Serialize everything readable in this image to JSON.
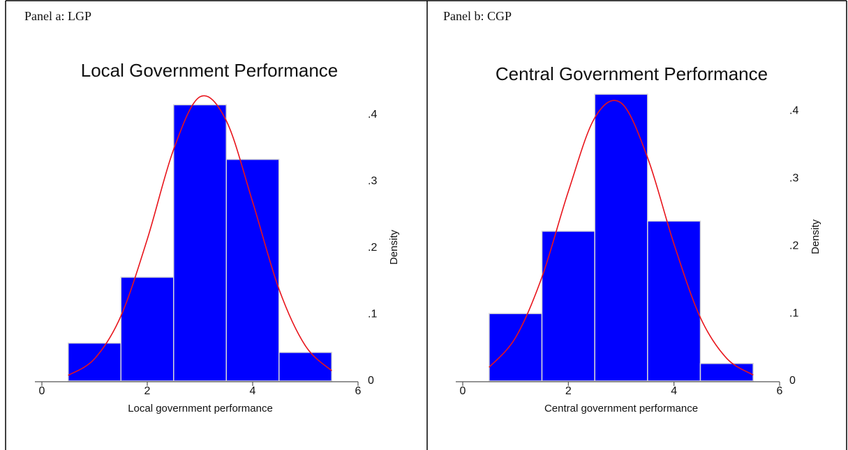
{
  "chart_data": [
    {
      "type": "histogram",
      "panel_label": "Panel  a:  LGP",
      "title": "Local Government Performance",
      "x_label": "Local government performance",
      "y_label": "Density",
      "bins": [
        0.5,
        1.5,
        2.5,
        3.5,
        4.5,
        5.5
      ],
      "values": [
        0.057,
        0.156,
        0.415,
        0.333,
        0.043
      ],
      "color": "#0000ff",
      "curve": {
        "color": "#e8141b",
        "x": [
          0.5,
          1,
          1.5,
          2,
          2.5,
          3,
          3.5,
          4,
          4.5,
          5,
          5.5
        ],
        "y": [
          0.0086,
          0.0335,
          0.0977,
          0.213,
          0.348,
          0.427,
          0.391,
          0.269,
          0.138,
          0.053,
          0.0154
        ]
      },
      "xlim": [
        0,
        6
      ],
      "xticks": [
        0,
        2,
        4,
        6
      ],
      "ylim": [
        0,
        0.45
      ],
      "yticks": [
        0,
        {
          "value": 0.1,
          "label": ".1"
        },
        {
          "value": 0.2,
          "label": ".2"
        },
        {
          "value": 0.3,
          "label": ".3"
        },
        {
          "value": 0.4,
          "label": ".4"
        }
      ]
    },
    {
      "type": "histogram",
      "panel_label": "Panel  b:  CGP",
      "title": "Central Government Performance",
      "x_label": "Central government performance",
      "y_label": "Density",
      "bins": [
        0.5,
        1.5,
        2.5,
        3.5,
        4.5,
        5.5
      ],
      "values": [
        0.1,
        0.222,
        0.425,
        0.237,
        0.026
      ],
      "color": "#0000ff",
      "curve": {
        "color": "#e8141b",
        "x": [
          0.5,
          1,
          1.5,
          2,
          2.5,
          3,
          3.5,
          4,
          4.5,
          5,
          5.5
        ],
        "y": [
          0.0204,
          0.0644,
          0.154,
          0.281,
          0.39,
          0.412,
          0.331,
          0.203,
          0.094,
          0.0335,
          0.009
        ]
      },
      "xlim": [
        0,
        6
      ],
      "xticks": [
        0,
        2,
        4,
        6
      ],
      "ylim": [
        0,
        0.45
      ],
      "yticks": [
        0,
        {
          "value": 0.1,
          "label": ".1"
        },
        {
          "value": 0.2,
          "label": ".2"
        },
        {
          "value": 0.3,
          "label": ".3"
        },
        {
          "value": 0.4,
          "label": ".4"
        }
      ]
    }
  ]
}
